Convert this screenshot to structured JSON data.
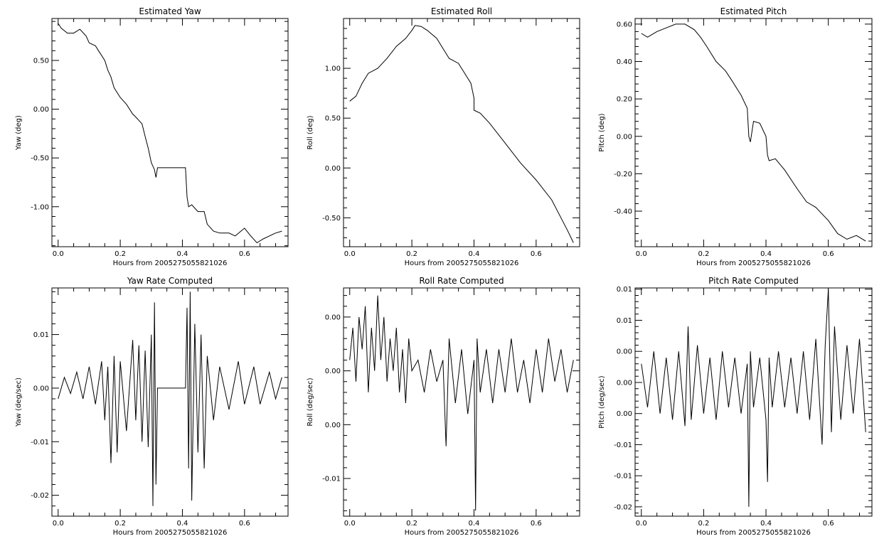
{
  "chart_data": [
    {
      "type": "line",
      "title": "Estimated Yaw",
      "xlabel": "Hours from 2005275055821026",
      "ylabel": "Yaw (deg)",
      "xlim": [
        -0.02,
        0.74
      ],
      "ylim": [
        -1.41,
        0.93
      ],
      "xticks": [
        0.0,
        0.2,
        0.4,
        0.6
      ],
      "xtick_labels": [
        "0.0",
        "0.2",
        "0.4",
        "0.6"
      ],
      "yticks": [
        0.5,
        0.0,
        -0.5,
        -1.0
      ],
      "ytick_labels": [
        "0.50",
        "0.00",
        "-0.50",
        "-1.00"
      ],
      "series": [
        {
          "x": [
            0.0,
            0.01,
            0.03,
            0.05,
            0.07,
            0.09,
            0.1,
            0.12,
            0.13,
            0.15,
            0.16,
            0.17,
            0.18,
            0.2,
            0.22,
            0.24,
            0.25,
            0.27,
            0.28,
            0.29,
            0.3,
            0.31,
            0.315,
            0.32,
            0.33,
            0.37,
            0.41,
            0.415,
            0.42,
            0.43,
            0.45,
            0.47,
            0.48,
            0.5,
            0.52,
            0.55,
            0.57,
            0.6,
            0.62,
            0.64,
            0.66,
            0.68,
            0.7,
            0.72
          ],
          "y": [
            0.88,
            0.83,
            0.78,
            0.78,
            0.82,
            0.75,
            0.68,
            0.65,
            0.6,
            0.5,
            0.4,
            0.33,
            0.22,
            0.12,
            0.05,
            -0.05,
            -0.08,
            -0.15,
            -0.28,
            -0.4,
            -0.55,
            -0.62,
            -0.7,
            -0.6,
            -0.6,
            -0.6,
            -0.6,
            -0.9,
            -1.0,
            -0.98,
            -1.05,
            -1.05,
            -1.18,
            -1.25,
            -1.27,
            -1.27,
            -1.3,
            -1.22,
            -1.3,
            -1.37,
            -1.33,
            -1.3,
            -1.27,
            -1.25
          ]
        }
      ]
    },
    {
      "type": "line",
      "title": "Estimated Roll",
      "xlabel": "Hours from 2005275055821026",
      "ylabel": "Roll (deg)",
      "xlim": [
        -0.02,
        0.74
      ],
      "ylim": [
        -0.79,
        1.5
      ],
      "xticks": [
        0.0,
        0.2,
        0.4,
        0.6
      ],
      "xtick_labels": [
        "0.0",
        "0.2",
        "0.4",
        "0.6"
      ],
      "yticks": [
        1.0,
        0.5,
        0.0,
        -0.5
      ],
      "ytick_labels": [
        "1.00",
        "0.50",
        "0.00",
        "-0.50"
      ],
      "series": [
        {
          "x": [
            0.0,
            0.02,
            0.04,
            0.06,
            0.09,
            0.12,
            0.15,
            0.18,
            0.2,
            0.21,
            0.23,
            0.25,
            0.28,
            0.3,
            0.32,
            0.35,
            0.37,
            0.39,
            0.4,
            0.4,
            0.42,
            0.45,
            0.5,
            0.55,
            0.6,
            0.65,
            0.7,
            0.72
          ],
          "y": [
            0.67,
            0.72,
            0.85,
            0.95,
            1.0,
            1.1,
            1.22,
            1.3,
            1.38,
            1.43,
            1.42,
            1.38,
            1.3,
            1.2,
            1.1,
            1.05,
            0.95,
            0.85,
            0.7,
            0.58,
            0.55,
            0.45,
            0.25,
            0.05,
            -0.12,
            -0.32,
            -0.62,
            -0.75
          ]
        }
      ]
    },
    {
      "type": "line",
      "title": "Estimated Pitch",
      "xlabel": "Hours from 2005275055821026",
      "ylabel": "Pitch (deg)",
      "xlim": [
        -0.02,
        0.74
      ],
      "ylim": [
        -0.59,
        0.63
      ],
      "xticks": [
        0.0,
        0.2,
        0.4,
        0.6
      ],
      "xtick_labels": [
        "0.0",
        "0.2",
        "0.4",
        "0.6"
      ],
      "yticks": [
        0.6,
        0.4,
        0.2,
        0.0,
        -0.2,
        -0.4
      ],
      "ytick_labels": [
        "0.60",
        "0.40",
        "0.20",
        "0.00",
        "-0.20",
        "-0.40"
      ],
      "series": [
        {
          "x": [
            0.0,
            0.02,
            0.05,
            0.08,
            0.11,
            0.14,
            0.17,
            0.19,
            0.21,
            0.24,
            0.27,
            0.29,
            0.32,
            0.34,
            0.345,
            0.35,
            0.36,
            0.38,
            0.4,
            0.405,
            0.41,
            0.43,
            0.46,
            0.5,
            0.53,
            0.56,
            0.6,
            0.63,
            0.66,
            0.69,
            0.72
          ],
          "y": [
            0.55,
            0.53,
            0.56,
            0.58,
            0.6,
            0.6,
            0.57,
            0.53,
            0.48,
            0.4,
            0.35,
            0.3,
            0.22,
            0.15,
            0.0,
            -0.03,
            0.08,
            0.07,
            0.0,
            -0.1,
            -0.13,
            -0.12,
            -0.18,
            -0.28,
            -0.35,
            -0.38,
            -0.45,
            -0.52,
            -0.55,
            -0.53,
            -0.56
          ]
        }
      ]
    },
    {
      "type": "line",
      "title": "Yaw Rate Computed",
      "xlabel": "Hours from 2005275055821026",
      "ylabel": "Yaw (deg/sec)",
      "xlim": [
        -0.02,
        0.74
      ],
      "ylim": [
        -0.0239,
        0.0187
      ],
      "xticks": [
        0.0,
        0.2,
        0.4,
        0.6
      ],
      "xtick_labels": [
        "0.0",
        "0.2",
        "0.4",
        "0.6"
      ],
      "yticks": [
        0.01,
        0.0,
        -0.01,
        -0.02
      ],
      "ytick_labels": [
        "0.01",
        "0.00",
        "-0.01",
        "-0.02"
      ],
      "series": [
        {
          "x": [
            0.0,
            0.02,
            0.04,
            0.06,
            0.08,
            0.1,
            0.12,
            0.14,
            0.15,
            0.16,
            0.17,
            0.18,
            0.19,
            0.2,
            0.22,
            0.24,
            0.25,
            0.26,
            0.27,
            0.28,
            0.29,
            0.3,
            0.305,
            0.31,
            0.315,
            0.32,
            0.34,
            0.37,
            0.4,
            0.41,
            0.415,
            0.42,
            0.425,
            0.43,
            0.44,
            0.45,
            0.46,
            0.47,
            0.48,
            0.5,
            0.52,
            0.55,
            0.58,
            0.6,
            0.63,
            0.65,
            0.68,
            0.7,
            0.72
          ],
          "y": [
            -0.002,
            0.002,
            -0.001,
            0.003,
            -0.002,
            0.004,
            -0.003,
            0.005,
            -0.006,
            0.004,
            -0.014,
            0.006,
            -0.012,
            0.005,
            -0.008,
            0.009,
            -0.006,
            0.008,
            -0.01,
            0.007,
            -0.011,
            0.01,
            -0.022,
            0.016,
            -0.018,
            0.0,
            0.0,
            0.0,
            0.0,
            0.0,
            0.015,
            -0.015,
            0.018,
            -0.021,
            0.012,
            -0.012,
            0.01,
            -0.015,
            0.006,
            -0.006,
            0.004,
            -0.004,
            0.005,
            -0.003,
            0.004,
            -0.003,
            0.003,
            -0.002,
            0.002
          ]
        }
      ]
    },
    {
      "type": "line",
      "title": "Roll Rate Computed",
      "xlabel": "Hours from 2005275055821026",
      "ylabel": "Roll (deg/sec)",
      "xlim": [
        -0.02,
        0.74
      ],
      "ylim": [
        -0.0135,
        0.0077
      ],
      "xticks": [
        0.0,
        0.2,
        0.4,
        0.6
      ],
      "xtick_labels": [
        "0.0",
        "0.2",
        "0.4",
        "0.6"
      ],
      "yticks": [
        0.005,
        0.0,
        -0.005,
        -0.01
      ],
      "ytick_labels": [
        "0.00",
        "0.00",
        "0.00",
        "-0.01"
      ],
      "series": [
        {
          "x": [
            0.0,
            0.01,
            0.02,
            0.03,
            0.04,
            0.05,
            0.06,
            0.07,
            0.08,
            0.09,
            0.1,
            0.11,
            0.12,
            0.13,
            0.14,
            0.15,
            0.16,
            0.17,
            0.18,
            0.19,
            0.2,
            0.22,
            0.24,
            0.26,
            0.28,
            0.3,
            0.31,
            0.32,
            0.34,
            0.36,
            0.38,
            0.4,
            0.405,
            0.41,
            0.42,
            0.44,
            0.46,
            0.48,
            0.5,
            0.52,
            0.54,
            0.56,
            0.58,
            0.6,
            0.62,
            0.64,
            0.66,
            0.68,
            0.7,
            0.72
          ],
          "y": [
            0.001,
            0.004,
            -0.001,
            0.005,
            0.002,
            0.006,
            -0.002,
            0.004,
            0.0,
            0.007,
            0.001,
            0.005,
            -0.001,
            0.003,
            0.0,
            0.004,
            -0.002,
            0.002,
            -0.003,
            0.003,
            0.0,
            0.001,
            -0.002,
            0.002,
            -0.001,
            0.001,
            -0.007,
            0.003,
            -0.003,
            0.002,
            -0.004,
            0.001,
            -0.013,
            0.003,
            -0.002,
            0.002,
            -0.003,
            0.002,
            -0.002,
            0.003,
            -0.002,
            0.001,
            -0.003,
            0.002,
            -0.002,
            0.003,
            -0.001,
            0.002,
            -0.002,
            0.001
          ]
        }
      ]
    },
    {
      "type": "line",
      "title": "Pitch Rate Computed",
      "xlabel": "Hours from 2005275055821026",
      "ylabel": "Pitch (deg/sec)",
      "xlim": [
        -0.02,
        0.74
      ],
      "ylim": [
        -0.0215,
        0.0152
      ],
      "xticks": [
        0.0,
        0.2,
        0.4,
        0.6
      ],
      "xtick_labels": [
        "0.0",
        "0.2",
        "0.4",
        "0.6"
      ],
      "yticks": [
        0.015,
        0.01,
        0.005,
        0.0,
        -0.005,
        -0.01,
        -0.015,
        -0.02
      ],
      "ytick_labels": [
        "0.01",
        "0.01",
        "0.00",
        "0.00",
        "0.00",
        "-0.01",
        "-0.01",
        "-0.02"
      ],
      "series": [
        {
          "x": [
            0.0,
            0.02,
            0.04,
            0.06,
            0.08,
            0.1,
            0.12,
            0.14,
            0.15,
            0.16,
            0.18,
            0.2,
            0.22,
            0.24,
            0.26,
            0.28,
            0.3,
            0.32,
            0.34,
            0.345,
            0.35,
            0.36,
            0.38,
            0.4,
            0.405,
            0.41,
            0.42,
            0.44,
            0.46,
            0.48,
            0.5,
            0.52,
            0.54,
            0.56,
            0.58,
            0.59,
            0.6,
            0.61,
            0.62,
            0.64,
            0.66,
            0.68,
            0.7,
            0.72
          ],
          "y": [
            0.003,
            -0.004,
            0.005,
            -0.005,
            0.004,
            -0.006,
            0.005,
            -0.007,
            0.009,
            -0.006,
            0.006,
            -0.005,
            0.004,
            -0.006,
            0.005,
            -0.004,
            0.004,
            -0.005,
            0.003,
            -0.02,
            0.005,
            -0.004,
            0.004,
            -0.006,
            -0.016,
            0.004,
            -0.004,
            0.005,
            -0.004,
            0.004,
            -0.005,
            0.005,
            -0.006,
            0.007,
            -0.01,
            0.006,
            0.015,
            -0.008,
            0.009,
            -0.006,
            0.006,
            -0.005,
            0.007,
            -0.008
          ]
        }
      ]
    }
  ]
}
